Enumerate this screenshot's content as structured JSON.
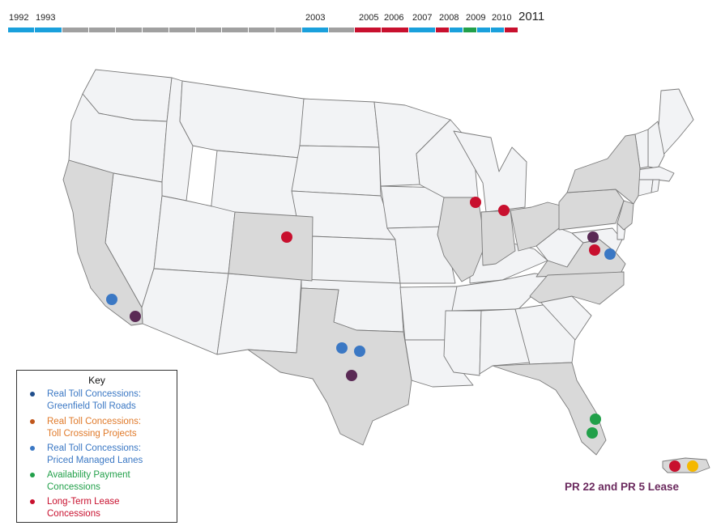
{
  "timeline": {
    "years": [
      "1992",
      "1993",
      "2003",
      "2005",
      "2006",
      "2007",
      "2008",
      "2009",
      "2010",
      "2011"
    ],
    "segment_colors": [
      "#1aa0dc",
      "#1aa0dc",
      "#a0a0a0",
      "#a0a0a0",
      "#a0a0a0",
      "#a0a0a0",
      "#a0a0a0",
      "#a0a0a0",
      "#a0a0a0",
      "#a0a0a0",
      "#a0a0a0",
      "#1aa0dc",
      "#a0a0a0",
      "#c8102e",
      "#c8102e",
      "#1aa0dc",
      "#c8102e",
      "#1aa0dc",
      "#22a04a",
      "#1aa0dc",
      "#1aa0dc",
      "#c8102e"
    ]
  },
  "map": {
    "shaded_states": [
      "California",
      "Colorado",
      "Texas",
      "Illinois",
      "Indiana",
      "Ohio",
      "Pennsylvania",
      "New York",
      "Virginia",
      "North Carolina",
      "Florida",
      "New Jersey",
      "Puerto Rico"
    ],
    "colors": {
      "shaded": "#d9d9d9",
      "unshaded": "#f2f3f5",
      "border": "#7a7a7a"
    }
  },
  "markers": [
    {
      "location": "Los Angeles, CA",
      "color": "#3b78c4"
    },
    {
      "location": "San Diego, CA",
      "color": "#5a2a55"
    },
    {
      "location": "Denver, CO",
      "color": "#c8102e"
    },
    {
      "location": "Dallas, TX",
      "color": "#3b78c4"
    },
    {
      "location": "Fort Worth, TX",
      "color": "#3b78c4"
    },
    {
      "location": "Austin, TX",
      "color": "#5a2a55"
    },
    {
      "location": "Chicago, IL",
      "color": "#c8102e"
    },
    {
      "location": "Indiana",
      "color": "#c8102e"
    },
    {
      "location": "Dulles, VA",
      "color": "#5a2a55"
    },
    {
      "location": "Northern Virginia",
      "color": "#c8102e"
    },
    {
      "location": "Capital Beltway, VA",
      "color": "#3b78c4"
    },
    {
      "location": "South Florida 1",
      "color": "#22a04a"
    },
    {
      "location": "South Florida 2",
      "color": "#22a04a"
    },
    {
      "location": "Puerto Rico 1",
      "color": "#c8102e"
    },
    {
      "location": "Puerto Rico 2",
      "color": "#f5b800"
    }
  ],
  "key": {
    "title": "Key",
    "items": [
      {
        "line1": "Real Toll Concessions:",
        "line2": "Greenfield Toll Roads",
        "dot_color": "#1f4e8c",
        "text_color": "#3b78c4"
      },
      {
        "line1": "Real Toll Concessions:",
        "line2": "Toll Crossing Projects",
        "dot_color": "#c0561b",
        "text_color": "#e07a2a"
      },
      {
        "line1": "Real Toll Concessions:",
        "line2": "Priced Managed Lanes",
        "dot_color": "#3b78c4",
        "text_color": "#3b78c4"
      },
      {
        "line1": "Availability Payment",
        "line2": "Concessions",
        "dot_color": "#22a04a",
        "text_color": "#22a04a"
      },
      {
        "line1": "Long-Term Lease",
        "line2": "Concessions",
        "dot_color": "#c8102e",
        "text_color": "#c8102e"
      }
    ]
  },
  "pr_label": "PR 22 and PR 5 Lease"
}
